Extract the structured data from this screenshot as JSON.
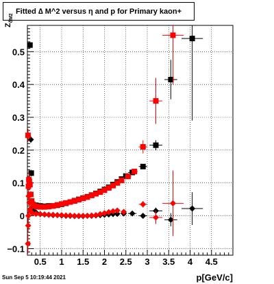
{
  "chart_data": {
    "type": "scatter",
    "title": "Fitted ∆ M^2 versus η and p for Primary kaon+",
    "xlabel": "p[GeV/c]",
    "ylabel_main": "Z",
    "ylabel_sub": "δM2",
    "footer": "Sun Sep  5 10:19:44 2021",
    "xlim": [
      0.2,
      5.0
    ],
    "ylim": [
      -0.12,
      0.58
    ],
    "xticks": [
      0.5,
      1,
      1.5,
      2,
      2.5,
      3,
      3.5,
      4,
      4.5
    ],
    "xticklabels": [
      "0.5",
      "1",
      "1.5",
      "2",
      "2.5",
      "3",
      "3.5",
      "4",
      "4.5"
    ],
    "yticks": [
      -0.1,
      0,
      0.1,
      0.2,
      0.3,
      0.4,
      0.5
    ],
    "yticklabels": [
      "−0.1",
      "0",
      "0.1",
      "0.2",
      "0.3",
      "0.4",
      "0.5"
    ],
    "grid": true,
    "series": [
      {
        "color": "#000000",
        "marker": "square",
        "points": [
          [
            0.26,
            0.52
          ],
          [
            0.29,
            0.13
          ],
          [
            0.32,
            0.02
          ],
          [
            0.36,
            0.028
          ],
          [
            0.4,
            0.032
          ],
          [
            0.5,
            0.03
          ],
          [
            0.6,
            0.029
          ],
          [
            0.7,
            0.03
          ],
          [
            0.8,
            0.03
          ],
          [
            0.9,
            0.032
          ],
          [
            1.0,
            0.035
          ],
          [
            1.1,
            0.038
          ],
          [
            1.2,
            0.042
          ],
          [
            1.3,
            0.046
          ],
          [
            1.4,
            0.05
          ],
          [
            1.5,
            0.054
          ],
          [
            1.6,
            0.058
          ],
          [
            1.7,
            0.063
          ],
          [
            1.8,
            0.068
          ],
          [
            1.9,
            0.074
          ],
          [
            2.0,
            0.08
          ],
          [
            2.1,
            0.087
          ],
          [
            2.2,
            0.095
          ],
          [
            2.3,
            0.103
          ],
          [
            2.4,
            0.112
          ],
          [
            2.5,
            0.121
          ],
          [
            2.65,
            0.132
          ],
          [
            2.9,
            0.15
          ],
          [
            3.2,
            0.215
          ],
          [
            3.55,
            0.415
          ],
          [
            4.05,
            0.54
          ]
        ],
        "yerr": [
          0.01,
          0.01,
          0.003,
          0.002,
          0.002,
          0.002,
          0.002,
          0.002,
          0.002,
          0.002,
          0.002,
          0.002,
          0.002,
          0.002,
          0.002,
          0.002,
          0.002,
          0.002,
          0.002,
          0.002,
          0.002,
          0.003,
          0.003,
          0.003,
          0.004,
          0.004,
          0.005,
          0.007,
          0.015,
          0.06,
          0.25
        ],
        "xerr": [
          0.01,
          0.01,
          0.01,
          0.02,
          0.02,
          0.05,
          0.05,
          0.05,
          0.05,
          0.05,
          0.05,
          0.05,
          0.05,
          0.05,
          0.05,
          0.05,
          0.05,
          0.05,
          0.05,
          0.05,
          0.05,
          0.05,
          0.05,
          0.05,
          0.05,
          0.05,
          0.1,
          0.1,
          0.15,
          0.15,
          0.25
        ]
      },
      {
        "color": "#000000",
        "marker": "diamond",
        "points": [
          [
            0.28,
            0.232
          ],
          [
            0.32,
            0.04
          ],
          [
            0.4,
            0.01
          ],
          [
            0.5,
            0.005
          ],
          [
            0.6,
            0.004
          ],
          [
            0.7,
            0.003
          ],
          [
            0.8,
            0.002
          ],
          [
            0.9,
            0.002
          ],
          [
            1.0,
            0.001
          ],
          [
            1.1,
            0.0
          ],
          [
            1.2,
            0.0
          ],
          [
            1.3,
            -0.001
          ],
          [
            1.4,
            -0.001
          ],
          [
            1.5,
            -0.001
          ],
          [
            1.6,
            0.0
          ],
          [
            1.7,
            0.0
          ],
          [
            1.8,
            0.001
          ],
          [
            1.9,
            0.002
          ],
          [
            2.0,
            0.003
          ],
          [
            2.1,
            0.004
          ],
          [
            2.2,
            0.005
          ],
          [
            2.3,
            0.006
          ],
          [
            2.45,
            0.007
          ],
          [
            2.65,
            0.007
          ],
          [
            2.9,
            0.0
          ],
          [
            3.2,
            0.015
          ],
          [
            3.55,
            -0.012
          ],
          [
            4.05,
            0.022
          ]
        ],
        "yerr": [
          0.01,
          0.005,
          0.002,
          0.002,
          0.002,
          0.002,
          0.002,
          0.002,
          0.002,
          0.002,
          0.002,
          0.002,
          0.002,
          0.002,
          0.002,
          0.002,
          0.002,
          0.002,
          0.002,
          0.002,
          0.002,
          0.002,
          0.003,
          0.004,
          0.006,
          0.01,
          0.02,
          0.05
        ],
        "xerr": [
          0.01,
          0.01,
          0.02,
          0.05,
          0.05,
          0.05,
          0.05,
          0.05,
          0.05,
          0.05,
          0.05,
          0.05,
          0.05,
          0.05,
          0.05,
          0.05,
          0.05,
          0.05,
          0.05,
          0.05,
          0.05,
          0.05,
          0.07,
          0.1,
          0.1,
          0.15,
          0.15,
          0.25
        ]
      },
      {
        "color": "#ff0000",
        "marker": "square",
        "points": [
          [
            0.215,
            0.245
          ],
          [
            0.225,
            0.09
          ],
          [
            0.235,
            0.11
          ],
          [
            0.245,
            0.105
          ],
          [
            0.26,
            0.095
          ],
          [
            0.28,
            0.065
          ],
          [
            0.3,
            0.045
          ],
          [
            0.33,
            0.035
          ],
          [
            0.37,
            0.03
          ],
          [
            0.42,
            0.028
          ],
          [
            0.5,
            0.027
          ],
          [
            0.6,
            0.027
          ],
          [
            0.7,
            0.028
          ],
          [
            0.8,
            0.03
          ],
          [
            0.9,
            0.033
          ],
          [
            1.0,
            0.036
          ],
          [
            1.1,
            0.039
          ],
          [
            1.2,
            0.042
          ],
          [
            1.3,
            0.045
          ],
          [
            1.4,
            0.049
          ],
          [
            1.5,
            0.053
          ],
          [
            1.6,
            0.057
          ],
          [
            1.7,
            0.062
          ],
          [
            1.8,
            0.067
          ],
          [
            1.9,
            0.072
          ],
          [
            2.0,
            0.078
          ],
          [
            2.1,
            0.085
          ],
          [
            2.2,
            0.092
          ],
          [
            2.3,
            0.1
          ],
          [
            2.4,
            0.108
          ],
          [
            2.55,
            0.12
          ],
          [
            2.7,
            0.135
          ],
          [
            2.9,
            0.21
          ],
          [
            3.2,
            0.35
          ],
          [
            3.6,
            0.55
          ]
        ],
        "yerr": [
          0.02,
          0.02,
          0.02,
          0.02,
          0.015,
          0.01,
          0.006,
          0.004,
          0.003,
          0.003,
          0.002,
          0.002,
          0.002,
          0.002,
          0.002,
          0.002,
          0.002,
          0.002,
          0.002,
          0.002,
          0.002,
          0.002,
          0.002,
          0.002,
          0.003,
          0.003,
          0.003,
          0.003,
          0.004,
          0.004,
          0.005,
          0.006,
          0.02,
          0.07,
          0.15
        ],
        "xerr": [
          0.005,
          0.005,
          0.005,
          0.005,
          0.01,
          0.01,
          0.01,
          0.015,
          0.02,
          0.03,
          0.05,
          0.05,
          0.05,
          0.05,
          0.05,
          0.05,
          0.05,
          0.05,
          0.05,
          0.05,
          0.05,
          0.05,
          0.05,
          0.05,
          0.05,
          0.05,
          0.05,
          0.05,
          0.05,
          0.05,
          0.075,
          0.075,
          0.1,
          0.15,
          0.25
        ]
      },
      {
        "color": "#ff0000",
        "marker": "diamond",
        "points": [
          [
            0.212,
            -0.085
          ],
          [
            0.218,
            -0.03
          ],
          [
            0.222,
            0.0
          ],
          [
            0.228,
            0.06
          ],
          [
            0.235,
            0.11
          ],
          [
            0.245,
            0.04
          ],
          [
            0.26,
            0.02
          ],
          [
            0.28,
            0.012
          ],
          [
            0.32,
            0.008
          ],
          [
            0.4,
            0.006
          ],
          [
            0.5,
            0.005
          ],
          [
            0.6,
            0.004
          ],
          [
            0.7,
            0.003
          ],
          [
            0.8,
            0.003
          ],
          [
            0.9,
            0.002
          ],
          [
            1.0,
            0.002
          ],
          [
            1.1,
            0.001
          ],
          [
            1.2,
            0.001
          ],
          [
            1.3,
            0.0
          ],
          [
            1.4,
            0.0
          ],
          [
            1.5,
            0.0
          ],
          [
            1.6,
            0.0
          ],
          [
            1.7,
            0.001
          ],
          [
            1.8,
            0.002
          ],
          [
            1.9,
            0.005
          ],
          [
            2.0,
            0.008
          ],
          [
            2.1,
            0.011
          ],
          [
            2.2,
            0.014
          ],
          [
            2.3,
            0.016
          ],
          [
            2.45,
            0.012
          ],
          [
            2.9,
            0.035
          ],
          [
            3.2,
            -0.005
          ],
          [
            3.6,
            0.038
          ]
        ],
        "yerr": [
          0.03,
          0.02,
          0.02,
          0.02,
          0.015,
          0.01,
          0.006,
          0.004,
          0.003,
          0.002,
          0.002,
          0.002,
          0.002,
          0.002,
          0.002,
          0.002,
          0.002,
          0.002,
          0.002,
          0.002,
          0.002,
          0.002,
          0.002,
          0.002,
          0.002,
          0.003,
          0.003,
          0.003,
          0.004,
          0.005,
          0.01,
          0.02,
          0.1
        ],
        "xerr": [
          0.003,
          0.003,
          0.003,
          0.003,
          0.005,
          0.005,
          0.01,
          0.01,
          0.02,
          0.05,
          0.05,
          0.05,
          0.05,
          0.05,
          0.05,
          0.05,
          0.05,
          0.05,
          0.05,
          0.05,
          0.05,
          0.05,
          0.05,
          0.05,
          0.05,
          0.05,
          0.05,
          0.05,
          0.05,
          0.07,
          0.1,
          0.15,
          0.25
        ]
      }
    ]
  }
}
